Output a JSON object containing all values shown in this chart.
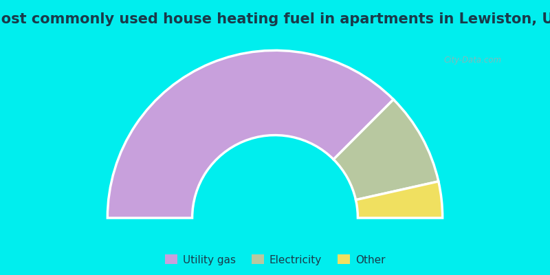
{
  "title": "Most commonly used house heating fuel in apartments in Lewiston, UT",
  "slices": [
    {
      "label": "Utility gas",
      "value": 75,
      "color": "#C8A0DC"
    },
    {
      "label": "Electricity",
      "value": 18,
      "color": "#B8C8A0"
    },
    {
      "label": "Other",
      "value": 7,
      "color": "#F0E060"
    }
  ],
  "background_color": "#00EEEE",
  "chart_bg_color": "#DDEEDD",
  "title_color": "#1a3a4a",
  "title_fontsize": 15,
  "watermark": "City-Data.com",
  "legend_fontsize": 11
}
